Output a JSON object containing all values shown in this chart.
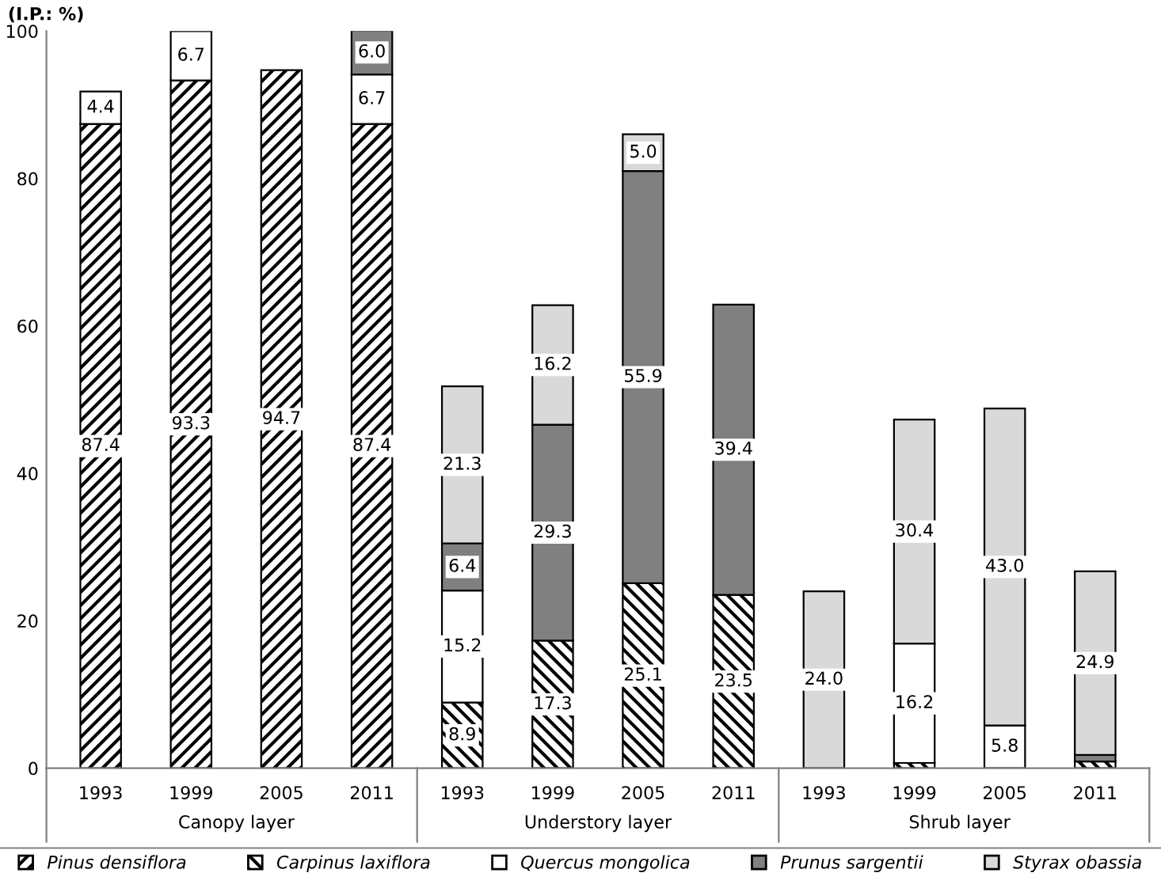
{
  "chart_data": {
    "type": "bar",
    "stacked": true,
    "ylabel": "(I.P.: %)",
    "categories": [
      "1993",
      "1999",
      "2005",
      "2011",
      "1993",
      "1999",
      "2005",
      "2011",
      "1993",
      "1999",
      "2005",
      "2011"
    ],
    "annotations": [
      "Canopy layer",
      "Understory layer",
      "Shrub layer"
    ],
    "series": [
      {
        "name": "Pinus densiflora",
        "color": "#000000",
        "values": [
          87.4,
          93.3,
          94.7,
          87.4,
          null,
          null,
          null,
          null,
          null,
          null,
          null,
          null
        ],
        "value_labels": [
          "87.4",
          "93.3",
          "94.7",
          "87.4",
          null,
          null,
          null,
          null,
          null,
          null,
          null,
          null
        ]
      },
      {
        "name": "Carpinus laxiflora",
        "color": "#000000",
        "values": [
          null,
          null,
          null,
          null,
          8.9,
          17.3,
          25.1,
          23.5,
          null,
          0.7,
          null,
          0.9
        ],
        "value_labels": [
          null,
          null,
          null,
          null,
          "8.9",
          "17.3",
          "25.1",
          "23.5",
          null,
          null,
          null,
          null
        ]
      },
      {
        "name": "Quercus mongolica",
        "color": "#ffffff",
        "values": [
          4.4,
          6.7,
          null,
          6.7,
          15.2,
          null,
          null,
          null,
          null,
          16.2,
          5.8,
          null
        ],
        "value_labels": [
          "4.4",
          "6.7",
          null,
          "6.7",
          "15.2",
          null,
          null,
          null,
          null,
          "16.2",
          "5.8",
          null
        ]
      },
      {
        "name": "Prunus sargentii",
        "color": "#808080",
        "values": [
          null,
          null,
          null,
          6.0,
          6.4,
          29.3,
          55.9,
          39.4,
          null,
          null,
          null,
          0.9
        ],
        "value_labels": [
          null,
          null,
          null,
          "6.0",
          "6.4",
          "29.3",
          "55.9",
          "39.4",
          null,
          null,
          null,
          null
        ]
      },
      {
        "name": "Styrax obassia",
        "color": "#d9d9d9",
        "values": [
          null,
          null,
          null,
          null,
          21.3,
          16.2,
          5.0,
          null,
          24.0,
          30.4,
          43.0,
          24.9
        ],
        "value_labels": [
          null,
          null,
          null,
          null,
          "21.3",
          "16.2",
          "5.0",
          null,
          "24.0",
          "30.4",
          "43.0",
          "24.9"
        ]
      }
    ],
    "ylim": [
      0,
      100
    ],
    "yticks": [
      0,
      20,
      40,
      60,
      80,
      100
    ],
    "legend": "bottom"
  }
}
